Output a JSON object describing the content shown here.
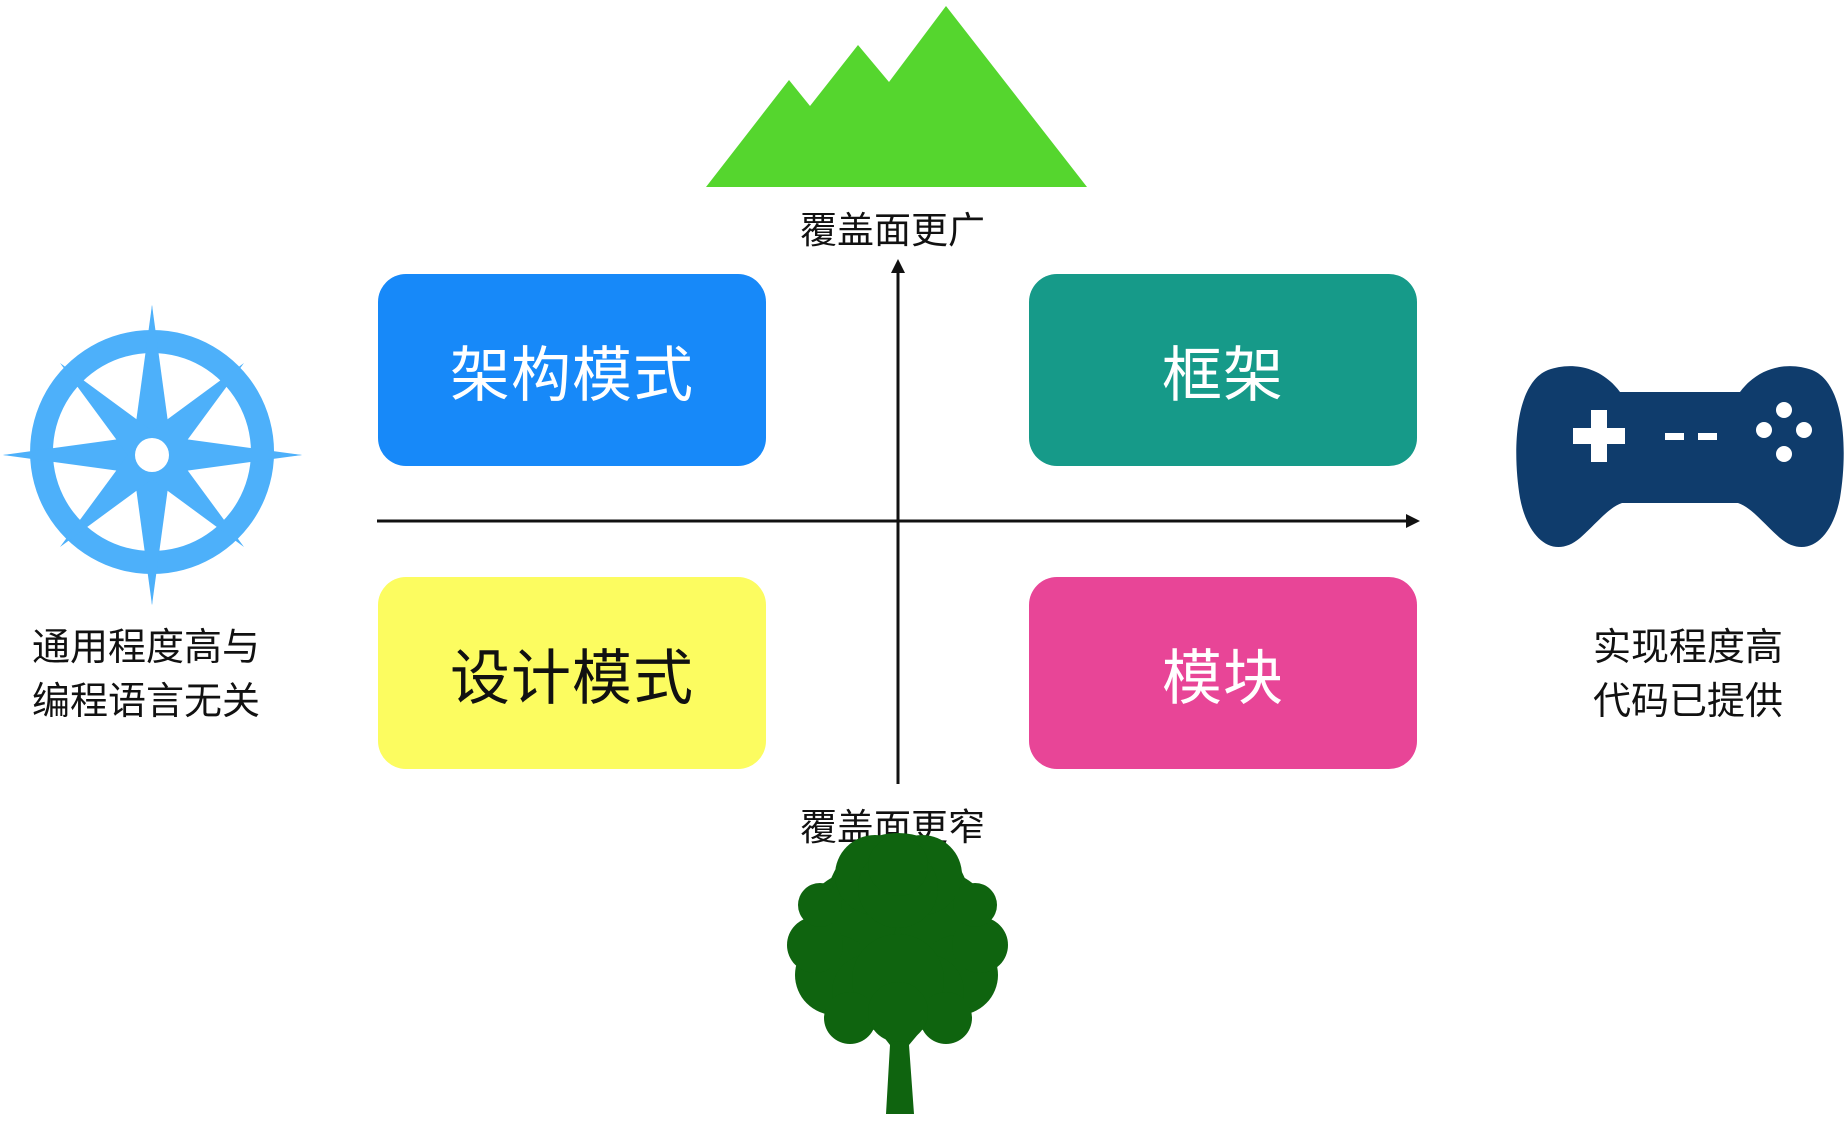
{
  "axis": {
    "top_label": "覆盖面更广",
    "bottom_label": "覆盖面更窄"
  },
  "left_label": {
    "line1": "通用程度高与",
    "line2": "编程语言无关"
  },
  "right_label": {
    "line1": "实现程度高",
    "line2": "代码已提供"
  },
  "quadrants": {
    "top_left": {
      "label": "架构模式",
      "color": "#1789F9",
      "text_color": "#ffffff"
    },
    "top_right": {
      "label": "框架",
      "color": "#169A89",
      "text_color": "#ffffff"
    },
    "bottom_left": {
      "label": "设计模式",
      "color": "#FCFC60",
      "text_color": "#111111"
    },
    "bottom_right": {
      "label": "模块",
      "color": "#E84597",
      "text_color": "#ffffff"
    }
  },
  "icons": {
    "top": "mountain-icon",
    "bottom": "tree-icon",
    "left": "compass-icon",
    "right": "gamepad-icon"
  },
  "colors": {
    "mountain": "#55D62E",
    "tree": "#0F640F",
    "compass": "#4DB0FA",
    "gamepad": "#0F3C6C",
    "axis": "#111111"
  }
}
